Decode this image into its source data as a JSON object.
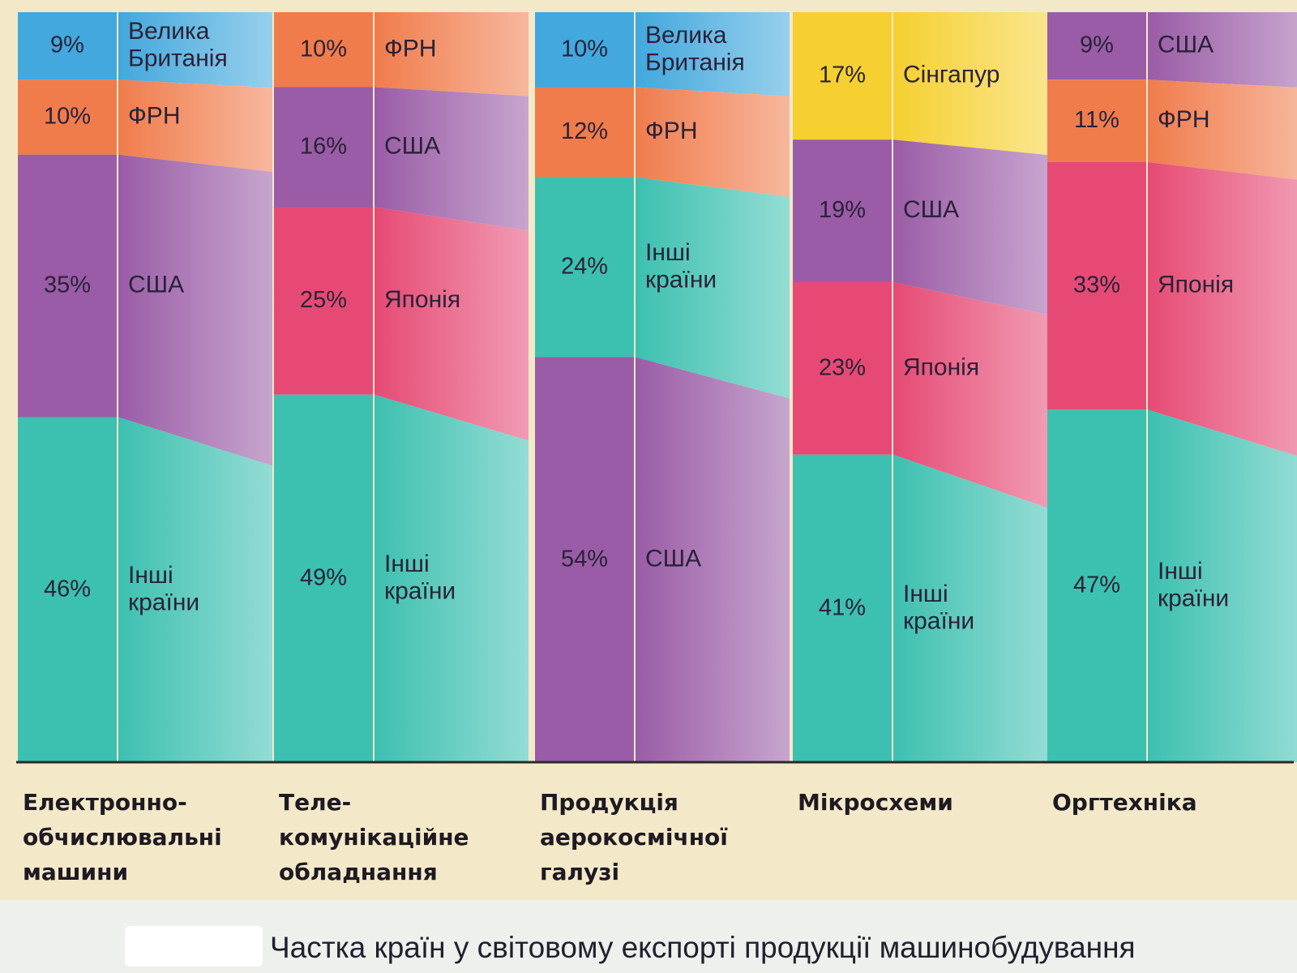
{
  "caption": "Частка країн у світовому експорті продукції машинобудування",
  "colors": {
    "Велика Британія": "#42a8dd",
    "ФРН": "#f07c4c",
    "США": "#9a5ca6",
    "Японія": "#e64a74",
    "Інші країни": "#3cc0b0",
    "Сінгапур": "#f6d030"
  },
  "chart_data": {
    "type": "bar",
    "stacked": true,
    "ylim": [
      0,
      100
    ],
    "categories": [
      "Електронно-\nобчислювальні\nмашини",
      "Теле-\nкомунікаційне\nобладнання",
      "Продукція\nаерокосмічної\nгалузі",
      "Мікросхеми",
      "Оргтехніка"
    ],
    "bars": [
      {
        "category": "Електронно-\nобчислювальні\nмашини",
        "segments": [
          {
            "label": "Велика\nБританія",
            "country": "Велика Британія",
            "value": 9,
            "value_label": "9%"
          },
          {
            "label": "ФРН",
            "country": "ФРН",
            "value": 10,
            "value_label": "10%"
          },
          {
            "label": "США",
            "country": "США",
            "value": 35,
            "value_label": "35%"
          },
          {
            "label": "Інші\nкраїни",
            "country": "Інші країни",
            "value": 46,
            "value_label": "46%"
          }
        ]
      },
      {
        "category": "Теле-\nкомунікаційне\nобладнання",
        "segments": [
          {
            "label": "ФРН",
            "country": "ФРН",
            "value": 10,
            "value_label": "10%"
          },
          {
            "label": "США",
            "country": "США",
            "value": 16,
            "value_label": "16%"
          },
          {
            "label": "Японія",
            "country": "Японія",
            "value": 25,
            "value_label": "25%"
          },
          {
            "label": "Інші\nкраїни",
            "country": "Інші країни",
            "value": 49,
            "value_label": "49%"
          }
        ]
      },
      {
        "category": "Продукція\nаерокосмічної\nгалузі",
        "segments": [
          {
            "label": "Велика\nБританія",
            "country": "Велика Британія",
            "value": 10,
            "value_label": "10%"
          },
          {
            "label": "ФРН",
            "country": "ФРН",
            "value": 12,
            "value_label": "12%"
          },
          {
            "label": "Інші\nкраїни",
            "country": "Інші країни",
            "value": 24,
            "value_label": "24%"
          },
          {
            "label": "США",
            "country": "США",
            "value": 54,
            "value_label": "54%"
          }
        ]
      },
      {
        "category": "Мікросхеми",
        "segments": [
          {
            "label": "Сінгапур",
            "country": "Сінгапур",
            "value": 17,
            "value_label": "17%"
          },
          {
            "label": "США",
            "country": "США",
            "value": 19,
            "value_label": "19%"
          },
          {
            "label": "Японія",
            "country": "Японія",
            "value": 23,
            "value_label": "23%"
          },
          {
            "label": "Інші\nкраїни",
            "country": "Інші країни",
            "value": 41,
            "value_label": "41%"
          }
        ]
      },
      {
        "category": "Оргтехніка",
        "segments": [
          {
            "label": "США",
            "country": "США",
            "value": 9,
            "value_label": "9%"
          },
          {
            "label": "ФРН",
            "country": "ФРН",
            "value": 11,
            "value_label": "11%"
          },
          {
            "label": "Японія",
            "country": "Японія",
            "value": 33,
            "value_label": "33%"
          },
          {
            "label": "Інші\nкраїни",
            "country": "Інші країни",
            "value": 47,
            "value_label": "47%"
          }
        ]
      }
    ]
  }
}
